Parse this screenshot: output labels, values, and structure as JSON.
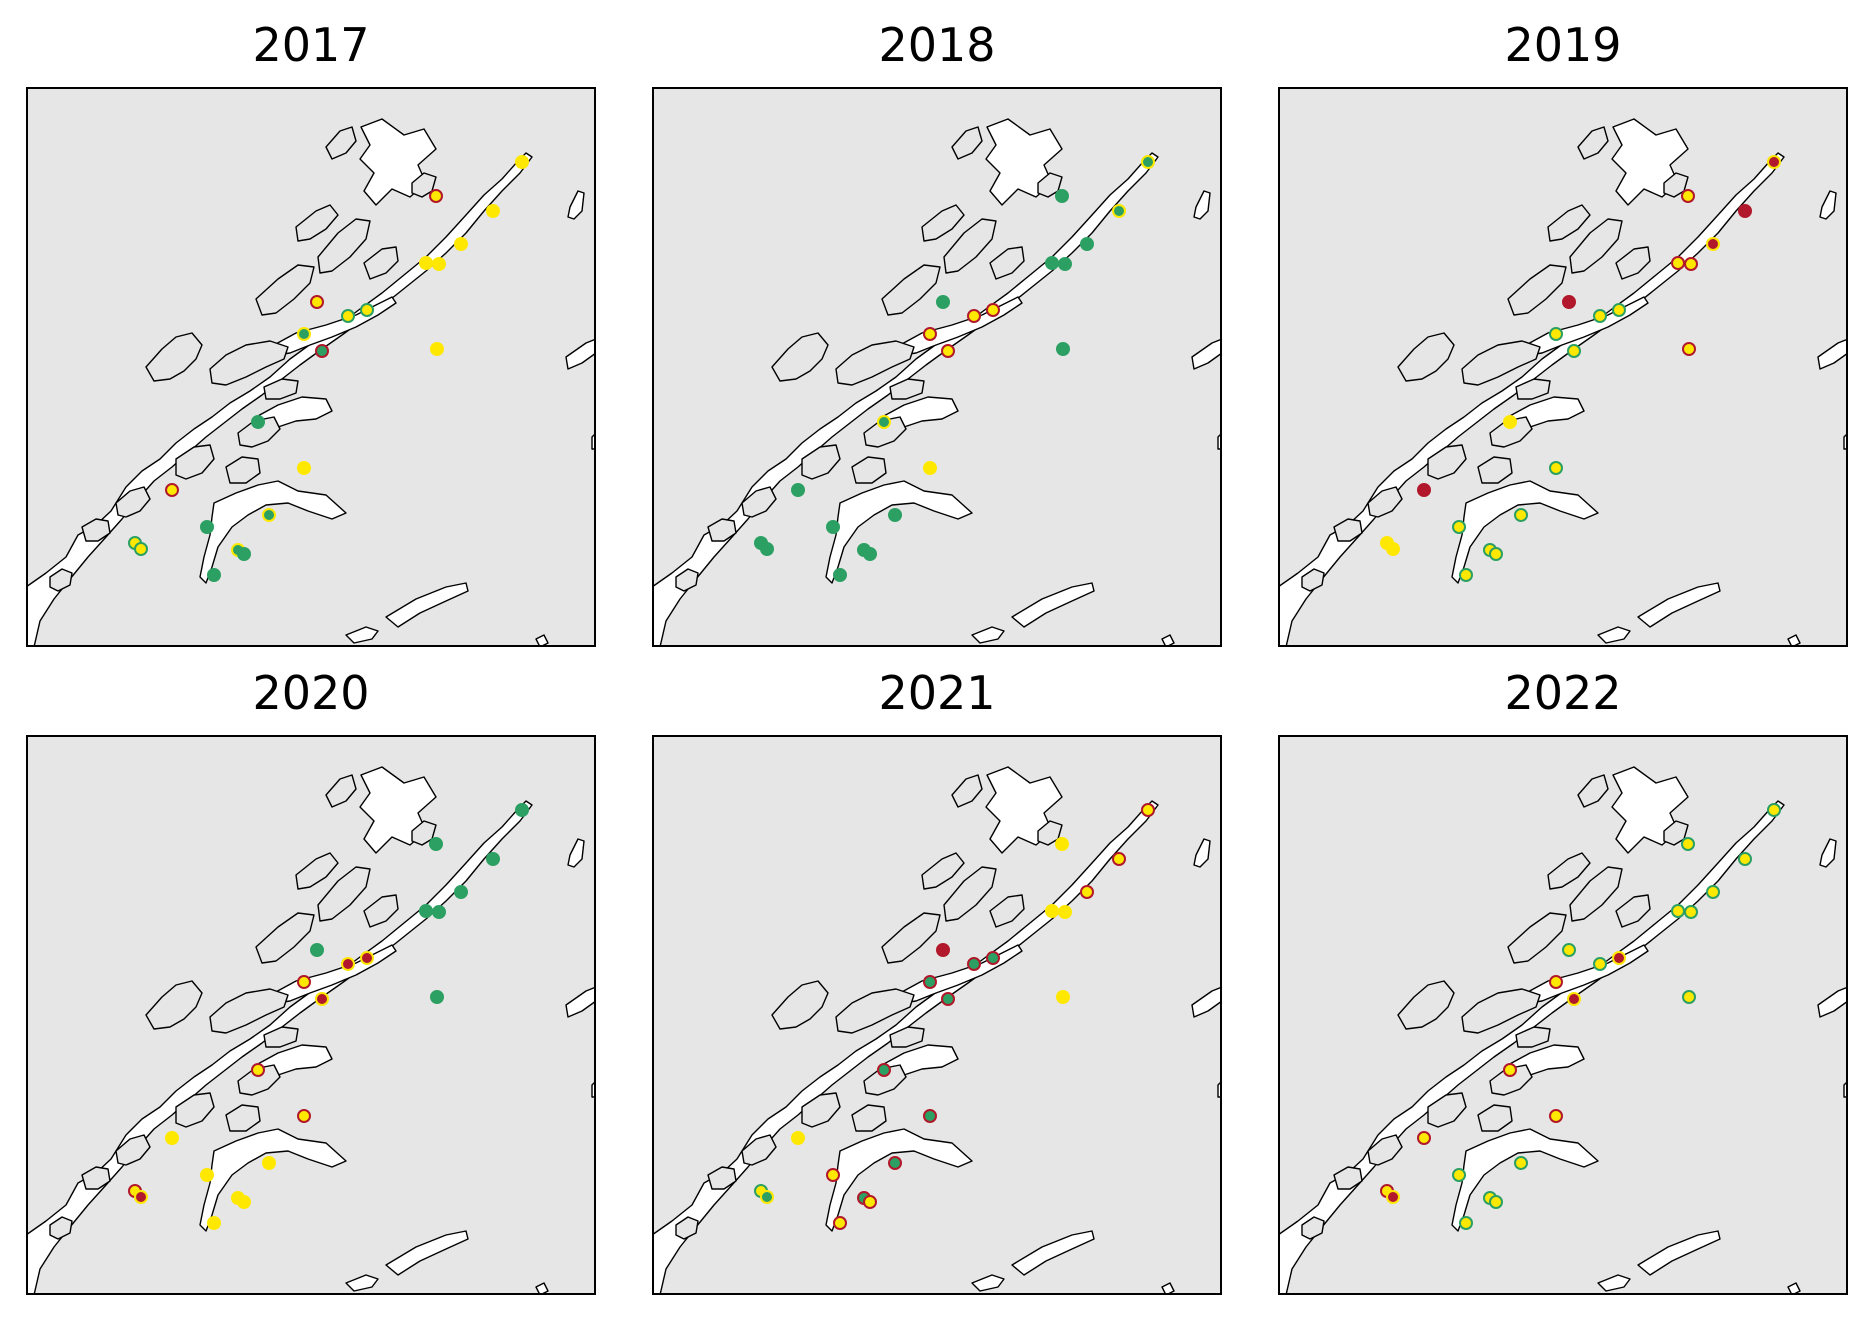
{
  "colors": {
    "background": "#ffffff",
    "land": "#e6e6e6",
    "water": "#ffffff",
    "coastline": "#000000",
    "red": "#b2182b",
    "yellow": "#ffe800",
    "green": "#2ca062"
  },
  "marker_legend": {
    "fill_and_edge_encode_categories": "red / yellow / green"
  },
  "panels": [
    {
      "title": "2017",
      "points": [
        {
          "s": 0,
          "f": "yellow",
          "e": "yellow"
        },
        {
          "s": 1,
          "f": "yellow",
          "e": "red"
        },
        {
          "s": 2,
          "f": "yellow",
          "e": "yellow"
        },
        {
          "s": 3,
          "f": "yellow",
          "e": "yellow"
        },
        {
          "s": 4,
          "f": "yellow",
          "e": "yellow"
        },
        {
          "s": 5,
          "f": "yellow",
          "e": "yellow"
        },
        {
          "s": 6,
          "f": "yellow",
          "e": "red"
        },
        {
          "s": 7,
          "f": "yellow",
          "e": "green"
        },
        {
          "s": 8,
          "f": "yellow",
          "e": "green"
        },
        {
          "s": 9,
          "f": "green",
          "e": "yellow"
        },
        {
          "s": 10,
          "f": "green",
          "e": "red"
        },
        {
          "s": 11,
          "f": "yellow",
          "e": "yellow"
        },
        {
          "s": 12,
          "f": "green",
          "e": "green"
        },
        {
          "s": 13,
          "f": "yellow",
          "e": "yellow"
        },
        {
          "s": 14,
          "f": "yellow",
          "e": "red"
        },
        {
          "s": 15,
          "f": "green",
          "e": "yellow"
        },
        {
          "s": 16,
          "f": "green",
          "e": "green"
        },
        {
          "s": 17,
          "f": "yellow",
          "e": "green"
        },
        {
          "s": 18,
          "f": "yellow",
          "e": "green"
        },
        {
          "s": 19,
          "f": "green",
          "e": "yellow"
        },
        {
          "s": 20,
          "f": "green",
          "e": "green"
        },
        {
          "s": 21,
          "f": "green",
          "e": "green"
        }
      ]
    },
    {
      "title": "2018",
      "points": [
        {
          "s": 0,
          "f": "green",
          "e": "yellow"
        },
        {
          "s": 1,
          "f": "green",
          "e": "green"
        },
        {
          "s": 2,
          "f": "green",
          "e": "yellow"
        },
        {
          "s": 3,
          "f": "green",
          "e": "green"
        },
        {
          "s": 4,
          "f": "green",
          "e": "green"
        },
        {
          "s": 5,
          "f": "green",
          "e": "green"
        },
        {
          "s": 6,
          "f": "green",
          "e": "green"
        },
        {
          "s": 7,
          "f": "yellow",
          "e": "red"
        },
        {
          "s": 8,
          "f": "yellow",
          "e": "red"
        },
        {
          "s": 9,
          "f": "yellow",
          "e": "red"
        },
        {
          "s": 10,
          "f": "yellow",
          "e": "red"
        },
        {
          "s": 11,
          "f": "green",
          "e": "green"
        },
        {
          "s": 12,
          "f": "green",
          "e": "yellow"
        },
        {
          "s": 13,
          "f": "yellow",
          "e": "yellow"
        },
        {
          "s": 14,
          "f": "green",
          "e": "green"
        },
        {
          "s": 15,
          "f": "green",
          "e": "green"
        },
        {
          "s": 16,
          "f": "green",
          "e": "green"
        },
        {
          "s": 17,
          "f": "green",
          "e": "green"
        },
        {
          "s": 18,
          "f": "green",
          "e": "green"
        },
        {
          "s": 19,
          "f": "green",
          "e": "green"
        },
        {
          "s": 20,
          "f": "green",
          "e": "green"
        },
        {
          "s": 21,
          "f": "green",
          "e": "green"
        }
      ]
    },
    {
      "title": "2019",
      "points": [
        {
          "s": 0,
          "f": "red",
          "e": "yellow"
        },
        {
          "s": 1,
          "f": "yellow",
          "e": "red"
        },
        {
          "s": 2,
          "f": "red",
          "e": "red"
        },
        {
          "s": 3,
          "f": "red",
          "e": "yellow"
        },
        {
          "s": 4,
          "f": "yellow",
          "e": "red"
        },
        {
          "s": 5,
          "f": "yellow",
          "e": "red"
        },
        {
          "s": 6,
          "f": "red",
          "e": "red"
        },
        {
          "s": 7,
          "f": "yellow",
          "e": "green"
        },
        {
          "s": 8,
          "f": "yellow",
          "e": "green"
        },
        {
          "s": 9,
          "f": "yellow",
          "e": "green"
        },
        {
          "s": 10,
          "f": "yellow",
          "e": "green"
        },
        {
          "s": 11,
          "f": "yellow",
          "e": "red"
        },
        {
          "s": 12,
          "f": "yellow",
          "e": "yellow"
        },
        {
          "s": 13,
          "f": "yellow",
          "e": "green"
        },
        {
          "s": 14,
          "f": "red",
          "e": "red"
        },
        {
          "s": 15,
          "f": "yellow",
          "e": "green"
        },
        {
          "s": 16,
          "f": "yellow",
          "e": "green"
        },
        {
          "s": 17,
          "f": "yellow",
          "e": "yellow"
        },
        {
          "s": 18,
          "f": "yellow",
          "e": "yellow"
        },
        {
          "s": 19,
          "f": "yellow",
          "e": "green"
        },
        {
          "s": 20,
          "f": "yellow",
          "e": "green"
        },
        {
          "s": 21,
          "f": "yellow",
          "e": "green"
        }
      ]
    },
    {
      "title": "2020",
      "points": [
        {
          "s": 0,
          "f": "green",
          "e": "green"
        },
        {
          "s": 1,
          "f": "green",
          "e": "green"
        },
        {
          "s": 2,
          "f": "green",
          "e": "green"
        },
        {
          "s": 3,
          "f": "green",
          "e": "green"
        },
        {
          "s": 4,
          "f": "green",
          "e": "green"
        },
        {
          "s": 5,
          "f": "green",
          "e": "green"
        },
        {
          "s": 6,
          "f": "green",
          "e": "green"
        },
        {
          "s": 7,
          "f": "red",
          "e": "yellow"
        },
        {
          "s": 8,
          "f": "red",
          "e": "yellow"
        },
        {
          "s": 9,
          "f": "yellow",
          "e": "red"
        },
        {
          "s": 10,
          "f": "red",
          "e": "yellow"
        },
        {
          "s": 11,
          "f": "green",
          "e": "green"
        },
        {
          "s": 12,
          "f": "yellow",
          "e": "red"
        },
        {
          "s": 13,
          "f": "yellow",
          "e": "red"
        },
        {
          "s": 14,
          "f": "yellow",
          "e": "yellow"
        },
        {
          "s": 15,
          "f": "yellow",
          "e": "yellow"
        },
        {
          "s": 16,
          "f": "yellow",
          "e": "yellow"
        },
        {
          "s": 17,
          "f": "yellow",
          "e": "red"
        },
        {
          "s": 18,
          "f": "red",
          "e": "yellow"
        },
        {
          "s": 19,
          "f": "yellow",
          "e": "yellow"
        },
        {
          "s": 20,
          "f": "yellow",
          "e": "yellow"
        },
        {
          "s": 21,
          "f": "yellow",
          "e": "yellow"
        }
      ]
    },
    {
      "title": "2021",
      "points": [
        {
          "s": 0,
          "f": "yellow",
          "e": "red"
        },
        {
          "s": 1,
          "f": "yellow",
          "e": "yellow"
        },
        {
          "s": 2,
          "f": "yellow",
          "e": "red"
        },
        {
          "s": 3,
          "f": "yellow",
          "e": "red"
        },
        {
          "s": 4,
          "f": "yellow",
          "e": "yellow"
        },
        {
          "s": 5,
          "f": "yellow",
          "e": "yellow"
        },
        {
          "s": 6,
          "f": "red",
          "e": "red"
        },
        {
          "s": 7,
          "f": "green",
          "e": "red"
        },
        {
          "s": 8,
          "f": "green",
          "e": "red"
        },
        {
          "s": 9,
          "f": "green",
          "e": "red"
        },
        {
          "s": 10,
          "f": "green",
          "e": "red"
        },
        {
          "s": 11,
          "f": "yellow",
          "e": "yellow"
        },
        {
          "s": 12,
          "f": "green",
          "e": "red"
        },
        {
          "s": 13,
          "f": "green",
          "e": "red"
        },
        {
          "s": 14,
          "f": "yellow",
          "e": "yellow"
        },
        {
          "s": 15,
          "f": "green",
          "e": "red"
        },
        {
          "s": 16,
          "f": "yellow",
          "e": "red"
        },
        {
          "s": 17,
          "f": "yellow",
          "e": "green"
        },
        {
          "s": 18,
          "f": "green",
          "e": "yellow"
        },
        {
          "s": 19,
          "f": "green",
          "e": "red"
        },
        {
          "s": 20,
          "f": "yellow",
          "e": "red"
        },
        {
          "s": 21,
          "f": "yellow",
          "e": "red"
        }
      ]
    },
    {
      "title": "2022",
      "points": [
        {
          "s": 0,
          "f": "yellow",
          "e": "green"
        },
        {
          "s": 1,
          "f": "yellow",
          "e": "green"
        },
        {
          "s": 2,
          "f": "yellow",
          "e": "green"
        },
        {
          "s": 3,
          "f": "yellow",
          "e": "green"
        },
        {
          "s": 4,
          "f": "yellow",
          "e": "green"
        },
        {
          "s": 5,
          "f": "yellow",
          "e": "green"
        },
        {
          "s": 6,
          "f": "yellow",
          "e": "green"
        },
        {
          "s": 7,
          "f": "yellow",
          "e": "green"
        },
        {
          "s": 8,
          "f": "red",
          "e": "yellow"
        },
        {
          "s": 9,
          "f": "yellow",
          "e": "red"
        },
        {
          "s": 10,
          "f": "red",
          "e": "yellow"
        },
        {
          "s": 11,
          "f": "yellow",
          "e": "green"
        },
        {
          "s": 12,
          "f": "yellow",
          "e": "red"
        },
        {
          "s": 13,
          "f": "yellow",
          "e": "red"
        },
        {
          "s": 14,
          "f": "yellow",
          "e": "red"
        },
        {
          "s": 15,
          "f": "yellow",
          "e": "green"
        },
        {
          "s": 16,
          "f": "yellow",
          "e": "green"
        },
        {
          "s": 17,
          "f": "yellow",
          "e": "red"
        },
        {
          "s": 18,
          "f": "red",
          "e": "yellow"
        },
        {
          "s": 19,
          "f": "yellow",
          "e": "green"
        },
        {
          "s": 20,
          "f": "yellow",
          "e": "green"
        },
        {
          "s": 21,
          "f": "yellow",
          "e": "green"
        }
      ]
    }
  ]
}
